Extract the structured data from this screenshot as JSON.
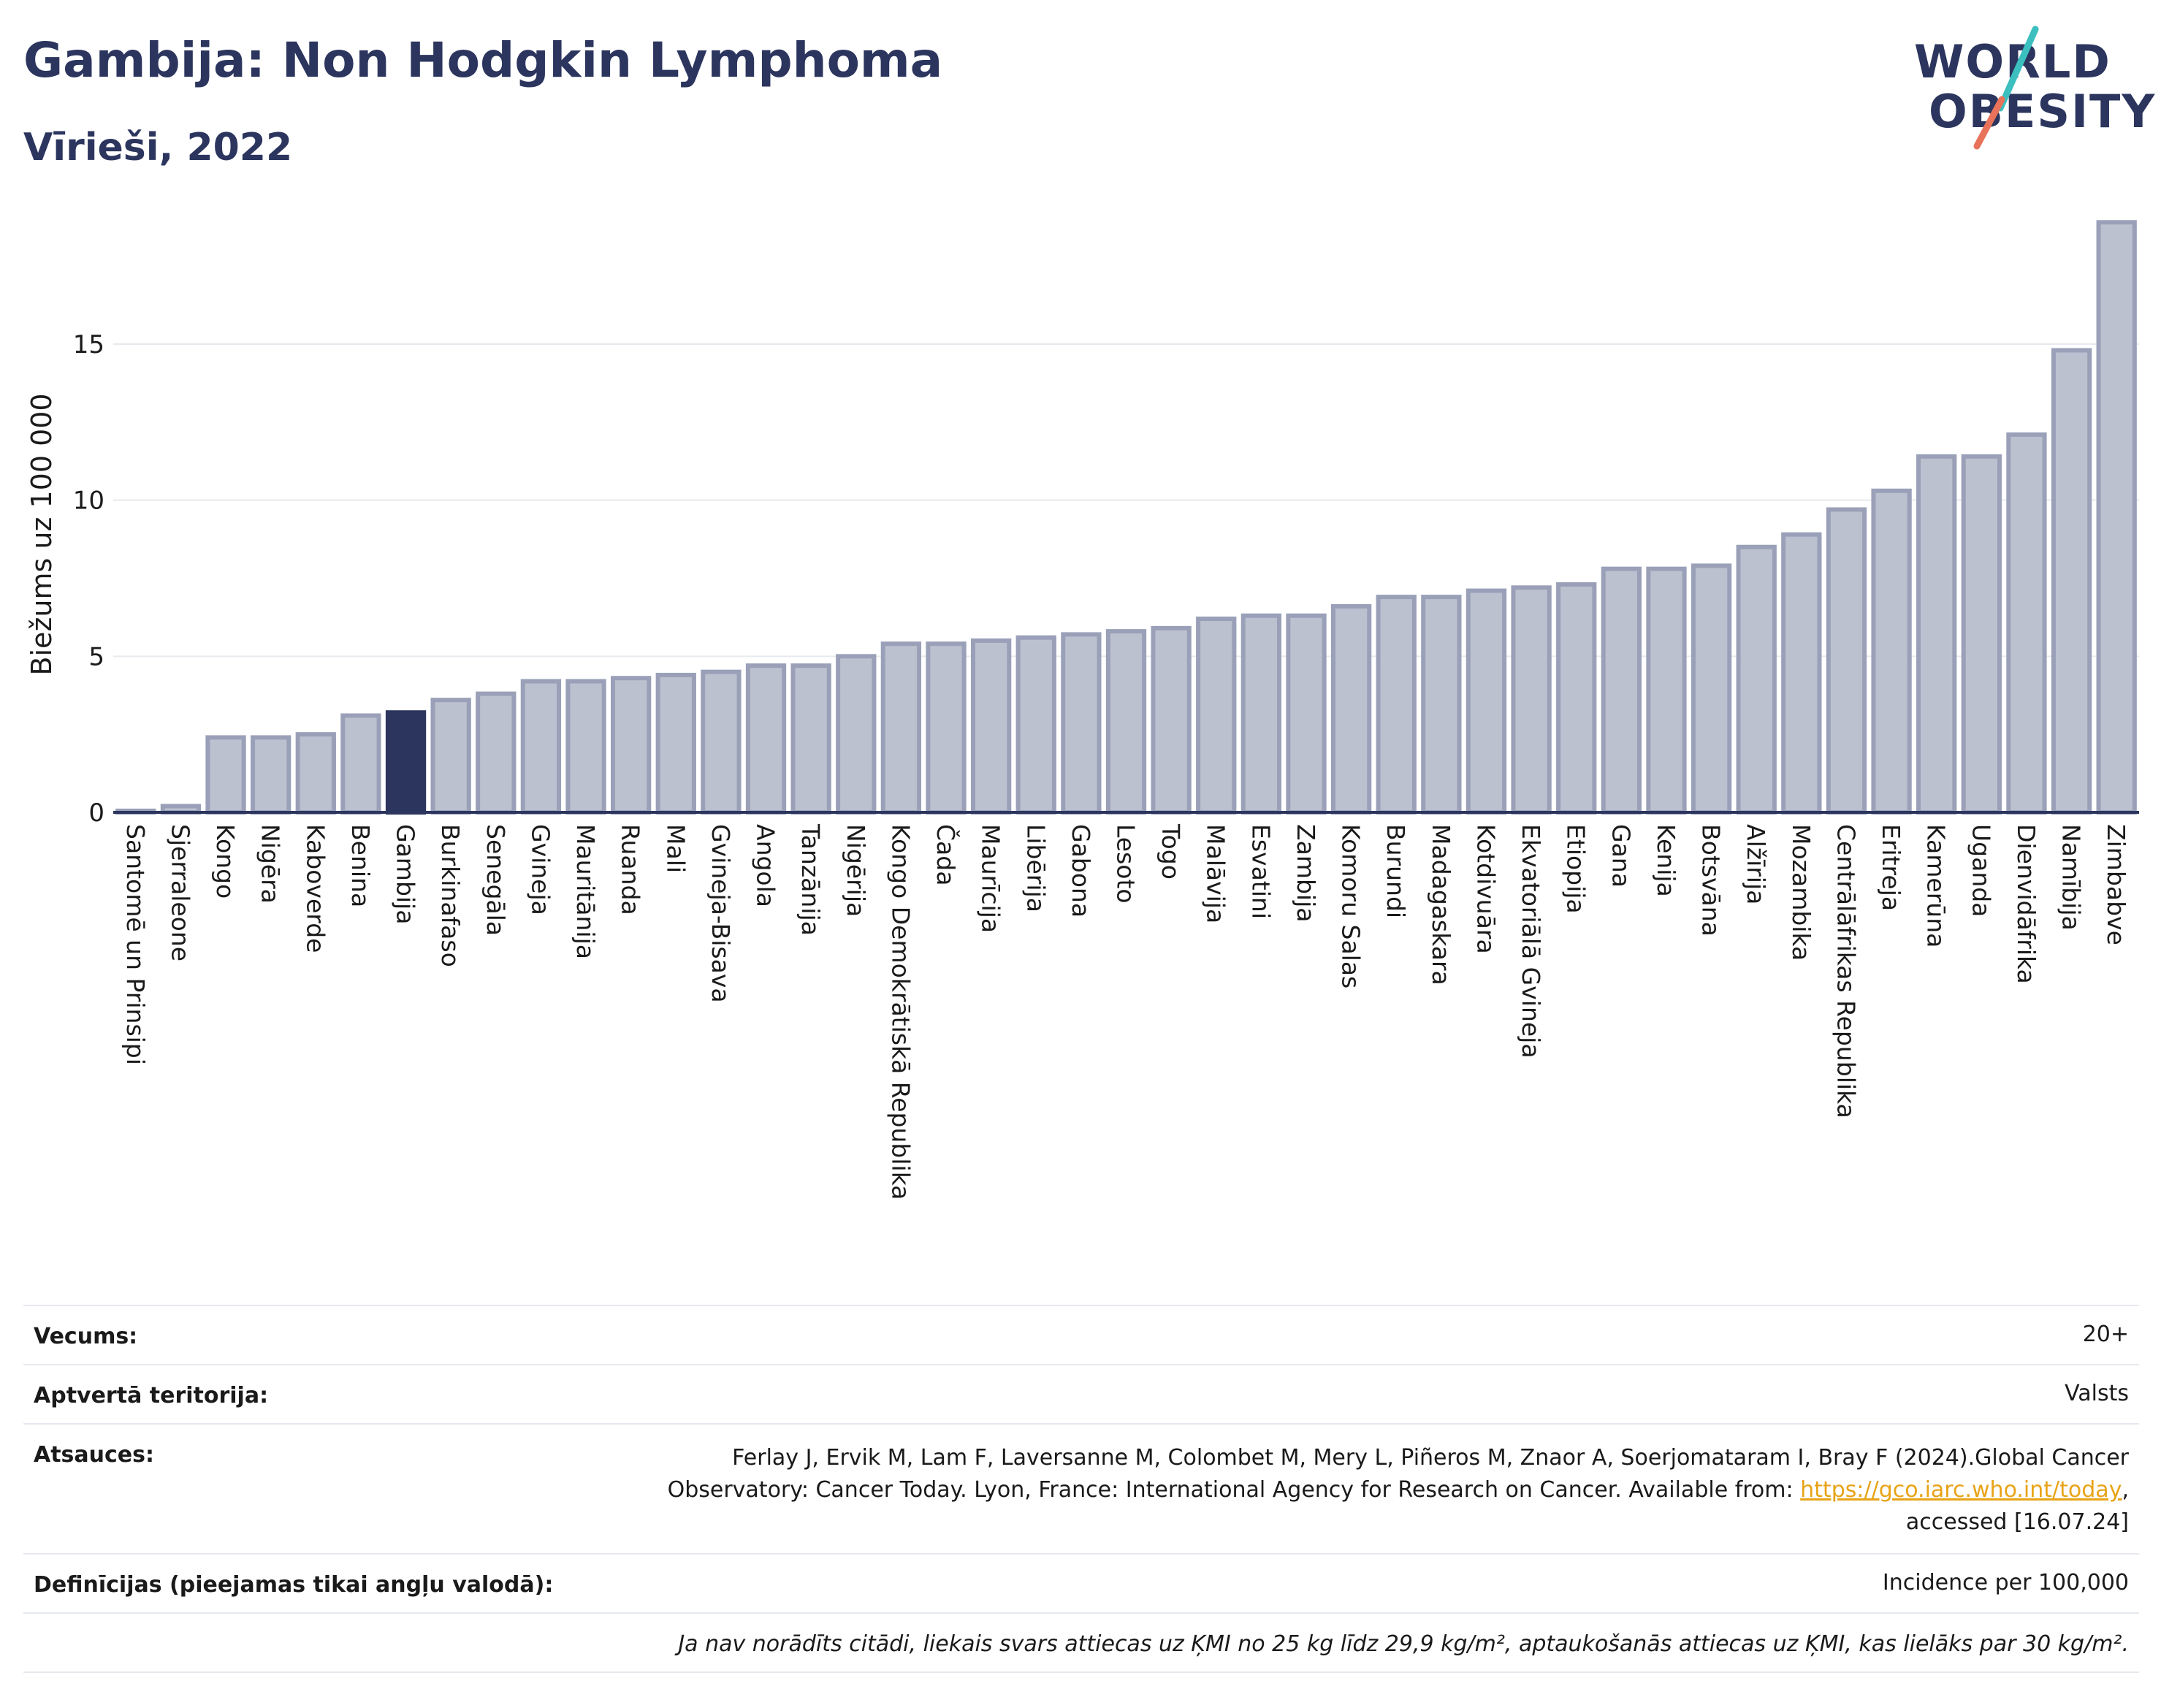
{
  "header": {
    "title": "Gambija: Non Hodgkin Lymphoma",
    "subtitle": "Vīrieši, 2022"
  },
  "logo": {
    "line1": "WORLD",
    "line2": "OBESITY",
    "accent_colors": [
      "#3bbfbf",
      "#e8735a"
    ]
  },
  "chart_data": {
    "type": "bar",
    "ylabel": "Biežums uz 100 000",
    "ylim": [
      0,
      19
    ],
    "yticks": [
      0,
      5,
      10,
      15
    ],
    "grid": true,
    "highlight": "Gambija",
    "colors": {
      "bar": "#bcc1cf",
      "bar_stroke": "#9aa0b8",
      "highlight": "#2b355e",
      "grid": "#e6e9ee",
      "axis": "#2b355e"
    },
    "categories": [
      "Santomē un Prinsipi",
      "Sjerraleone",
      "Kongo",
      "Nigēra",
      "Kaboverde",
      "Benina",
      "Gambija",
      "Burkinafaso",
      "Senegāla",
      "Gvineja",
      "Mauritānija",
      "Ruanda",
      "Mali",
      "Gvineja-Bisava",
      "Angola",
      "Tanzānija",
      "Nigērija",
      "Kongo Demokrātiskā Republika",
      "Čada",
      "Maurīcija",
      "Libērija",
      "Gabona",
      "Lesoto",
      "Togo",
      "Malāvija",
      "Esvatini",
      "Zambija",
      "Komoru Salas",
      "Burundi",
      "Madagaskara",
      "Kotdivuāra",
      "Ekvatoriālā Gvineja",
      "Etiopija",
      "Gana",
      "Kenija",
      "Botsvāna",
      "Alžīrija",
      "Mozambika",
      "Centrālāfrikas Republika",
      "Eritreja",
      "Kamerūna",
      "Uganda",
      "Dienvidāfrika",
      "Namībija",
      "Zimbabve"
    ],
    "values": [
      0.05,
      0.2,
      2.4,
      2.4,
      2.5,
      3.1,
      3.2,
      3.6,
      3.8,
      4.2,
      4.2,
      4.3,
      4.4,
      4.5,
      4.7,
      4.7,
      5.0,
      5.4,
      5.4,
      5.5,
      5.6,
      5.7,
      5.8,
      5.9,
      6.2,
      6.3,
      6.3,
      6.6,
      6.9,
      6.9,
      7.1,
      7.2,
      7.3,
      7.8,
      7.8,
      7.9,
      8.5,
      8.9,
      9.7,
      10.3,
      11.4,
      11.4,
      12.1,
      14.8,
      18.9
    ]
  },
  "info": {
    "age_label": "Vecums:",
    "age_value": "20+",
    "territory_label": "Aptvertā teritorija:",
    "territory_value": "Valsts",
    "refs_label": "Atsauces:",
    "refs_line1": "Ferlay J, Ervik M, Lam F, Laversanne M, Colombet M, Mery L, Piñeros M, Znaor A, Soerjomataram I, Bray F (2024).Global Cancer",
    "refs_line2": "Observatory: Cancer Today. Lyon, France: International Agency for Research on Cancer. Available from: ",
    "refs_link": "https://gco.iarc.who.int/today",
    "refs_line2_end": ",",
    "refs_line3": "accessed [16.07.24]",
    "defs_label": "Definīcijas (pieejamas tikai angļu valodā):",
    "defs_value": "Incidence per 100,000",
    "note": "Ja nav norādīts citādi, liekais svars attiecas uz ĶMI no 25 kg līdz 29,9 kg/m², aptaukošanās attiecas uz ĶMI, kas lielāks par 30 kg/m²."
  }
}
